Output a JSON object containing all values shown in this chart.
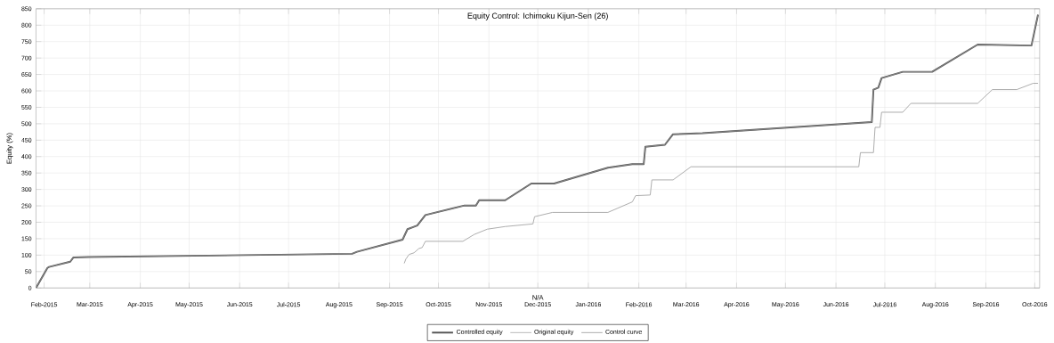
{
  "chart_data": {
    "type": "line",
    "title": "Equity Control: Ichimoku Kijun-Sen (26)",
    "xlabel": "N/A",
    "ylabel": "Equity (%)",
    "xlim": [
      "2015-01-27",
      "2016-10-04"
    ],
    "ylim": [
      0,
      850
    ],
    "xticks": [
      {
        "value": "2015-02-01",
        "label": "Feb-2015"
      },
      {
        "value": "2015-03-01",
        "label": "Mar-2015"
      },
      {
        "value": "2015-04-01",
        "label": "Apr-2015"
      },
      {
        "value": "2015-05-01",
        "label": "May-2015"
      },
      {
        "value": "2015-06-01",
        "label": "Jun-2015"
      },
      {
        "value": "2015-07-01",
        "label": "Jul-2015"
      },
      {
        "value": "2015-08-01",
        "label": "Aug-2015"
      },
      {
        "value": "2015-09-01",
        "label": "Sep-2015"
      },
      {
        "value": "2015-10-01",
        "label": "Oct-2015"
      },
      {
        "value": "2015-11-01",
        "label": "Nov-2015"
      },
      {
        "value": "2015-12-01",
        "label": "Dec-2015"
      },
      {
        "value": "2016-01-01",
        "label": "Jan-2016"
      },
      {
        "value": "2016-02-01",
        "label": "Feb-2016"
      },
      {
        "value": "2016-03-01",
        "label": "Mar-2016"
      },
      {
        "value": "2016-04-01",
        "label": "Apr-2016"
      },
      {
        "value": "2016-05-01",
        "label": "May-2016"
      },
      {
        "value": "2016-06-01",
        "label": "Jun-2016"
      },
      {
        "value": "2016-07-01",
        "label": "Jul-2016"
      },
      {
        "value": "2016-08-01",
        "label": "Aug-2016"
      },
      {
        "value": "2016-09-01",
        "label": "Sep-2016"
      },
      {
        "value": "2016-10-01",
        "label": "Oct-2016"
      }
    ],
    "yticks": [
      0,
      50,
      100,
      150,
      200,
      250,
      300,
      350,
      400,
      450,
      500,
      550,
      600,
      650,
      700,
      750,
      800,
      850
    ],
    "grid": true,
    "legend": "bottom",
    "series": [
      {
        "name": "Controlled equity",
        "color": "#555555",
        "x": [
          "2015-01-27",
          "2015-02-03",
          "2015-02-04",
          "2015-02-17",
          "2015-02-19",
          "2015-02-28",
          "2015-08-09",
          "2015-08-12",
          "2015-09-09",
          "2015-09-12",
          "2015-09-18",
          "2015-09-23",
          "2015-10-17",
          "2015-10-24",
          "2015-10-26",
          "2015-11-11",
          "2015-11-27",
          "2015-12-11",
          "2016-01-13",
          "2016-01-28",
          "2016-02-04",
          "2016-02-05",
          "2016-02-17",
          "2016-02-22",
          "2016-03-11",
          "2016-06-23",
          "2016-06-24",
          "2016-06-27",
          "2016-06-29",
          "2016-07-12",
          "2016-07-30",
          "2016-08-27",
          "2016-09-29",
          "2016-10-03"
        ],
        "values": [
          0,
          61,
          64,
          80,
          93,
          94,
          104,
          110,
          147,
          179,
          190,
          222,
          251,
          251,
          267,
          267,
          318,
          318,
          366,
          377,
          377,
          430,
          436,
          468,
          471,
          505,
          604,
          610,
          639,
          658,
          658,
          741,
          738,
          832
        ]
      },
      {
        "name": "Original equity",
        "color": "#999999",
        "x": [
          "2015-01-27",
          "2015-02-03",
          "2015-02-04",
          "2015-02-17",
          "2015-02-19",
          "2015-02-28",
          "2015-08-09",
          "2015-08-12",
          "2015-09-09",
          "2015-09-12",
          "2015-09-18",
          "2015-09-23",
          "2015-10-17",
          "2015-10-24",
          "2015-10-26",
          "2015-11-11",
          "2015-11-27",
          "2015-12-11",
          "2016-01-13",
          "2016-01-28",
          "2016-02-04",
          "2016-02-05",
          "2016-02-17",
          "2016-02-22",
          "2016-03-11",
          "2016-06-23",
          "2016-06-24",
          "2016-06-27",
          "2016-06-29",
          "2016-07-12",
          "2016-07-30",
          "2016-08-27",
          "2016-09-29",
          "2016-10-03"
        ],
        "values": [
          0,
          61,
          64,
          80,
          93,
          94,
          104,
          110,
          147,
          179,
          190,
          222,
          251,
          251,
          267,
          267,
          318,
          318,
          366,
          377,
          377,
          430,
          436,
          468,
          471,
          505,
          604,
          610,
          639,
          658,
          658,
          741,
          738,
          832
        ]
      },
      {
        "name": "Control curve",
        "color": "#aaaaaa",
        "x": [
          "2015-09-10",
          "2015-09-11",
          "2015-09-13",
          "2015-09-16",
          "2015-09-19",
          "2015-09-21",
          "2015-09-23",
          "2015-10-16",
          "2015-10-23",
          "2015-10-31",
          "2015-11-11",
          "2015-11-28",
          "2015-11-29",
          "2015-12-10",
          "2016-01-13",
          "2016-01-28",
          "2016-01-30",
          "2016-02-08",
          "2016-02-09",
          "2016-02-22",
          "2016-03-04",
          "2016-06-15",
          "2016-06-16",
          "2016-06-24",
          "2016-06-25",
          "2016-06-28",
          "2016-06-29",
          "2016-07-12",
          "2016-07-17",
          "2016-08-27",
          "2016-09-05",
          "2016-09-20",
          "2016-09-30",
          "2016-10-03"
        ],
        "values": [
          75,
          88,
          102,
          107,
          120,
          123,
          142,
          142,
          163,
          179,
          187,
          195,
          217,
          230,
          230,
          262,
          281,
          283,
          329,
          329,
          369,
          369,
          412,
          412,
          489,
          489,
          535,
          535,
          562,
          562,
          604,
          604,
          623,
          623
        ]
      }
    ]
  }
}
